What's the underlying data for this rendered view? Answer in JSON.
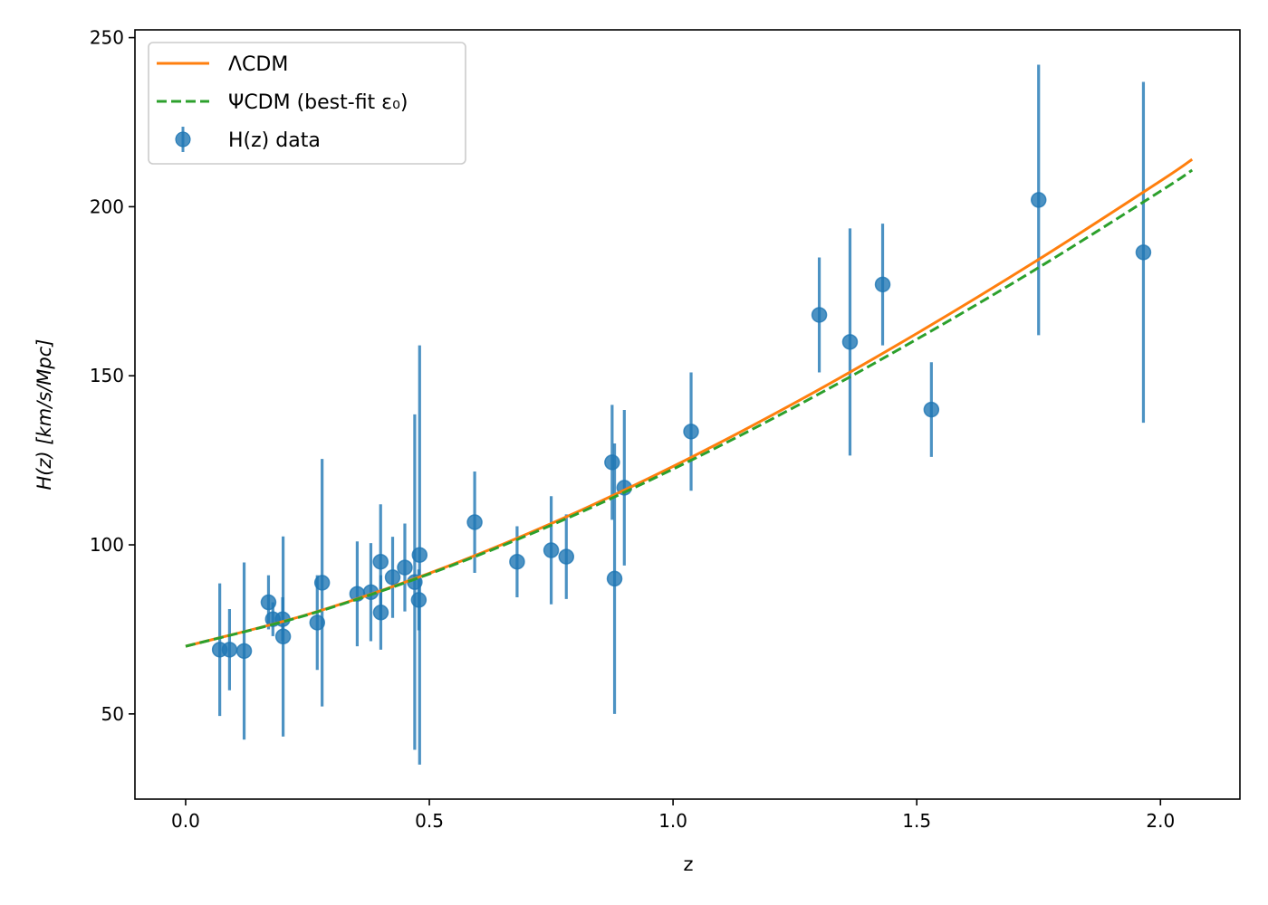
{
  "chart_data": {
    "type": "scatter",
    "title": "",
    "xlabel": "z",
    "ylabel": "H(z) [km/s/Mpc]",
    "xlim": [
      -0.104,
      2.163
    ],
    "ylim": [
      24.8,
      252.3
    ],
    "xticks": [
      0.0,
      0.5,
      1.0,
      1.5,
      2.0
    ],
    "xtick_labels": [
      "0.0",
      "0.5",
      "1.0",
      "1.5",
      "2.0"
    ],
    "yticks": [
      50,
      100,
      150,
      200,
      250
    ],
    "ytick_labels": [
      "50",
      "100",
      "150",
      "200",
      "250"
    ],
    "grid": false,
    "legend_placement": "top-left",
    "series": [
      {
        "name": "ΛCDM",
        "kind": "line",
        "color": "#ff7f0e",
        "style": "solid",
        "x": [
          0,
          0.25,
          0.5,
          0.75,
          1.0,
          1.25,
          1.5,
          1.75,
          2.0,
          2.065
        ],
        "y": [
          70,
          79.4,
          91.6,
          106.3,
          123.2,
          142.0,
          162.5,
          184.4,
          207.6,
          214.0
        ]
      },
      {
        "name": "ΨCDM (best-fit ε₀)",
        "kind": "line",
        "color": "#2ca02c",
        "style": "dashed",
        "x": [
          0,
          0.25,
          0.5,
          0.75,
          1.0,
          1.25,
          1.5,
          1.75,
          2.0,
          2.065
        ],
        "y": [
          70,
          79.3,
          91.4,
          105.8,
          122.4,
          140.8,
          160.8,
          182.0,
          204.6,
          210.8
        ]
      },
      {
        "name": "H(z) data",
        "kind": "errorbar",
        "color": "#1f77b4",
        "x": [
          0.07,
          0.09,
          0.12,
          0.17,
          0.179,
          0.199,
          0.2,
          0.27,
          0.28,
          0.352,
          0.38,
          0.4,
          0.4004,
          0.4247,
          0.4497,
          0.47,
          0.4783,
          0.48,
          0.593,
          0.68,
          0.75,
          0.781,
          0.875,
          0.88,
          0.9,
          1.037,
          1.3,
          1.363,
          1.43,
          1.53,
          1.75,
          1.965
        ],
        "y": [
          69,
          69,
          68.6,
          83,
          78,
          78,
          72.9,
          77,
          88.8,
          85.5,
          86,
          95,
          80,
          90.4,
          93.3,
          89,
          83.7,
          97,
          106.7,
          95,
          98.4,
          96.5,
          124.4,
          90,
          116.9,
          133.5,
          168,
          160,
          177,
          140,
          202,
          186.5
        ],
        "err": [
          19.6,
          12,
          26.2,
          8,
          5,
          6.5,
          29.6,
          14,
          36.6,
          15.5,
          14.5,
          17,
          11,
          12,
          13,
          49.6,
          9,
          62,
          15,
          10.5,
          16,
          12.5,
          17,
          40,
          23,
          17.5,
          17,
          33.6,
          18,
          14,
          40,
          50.4
        ]
      }
    ]
  }
}
